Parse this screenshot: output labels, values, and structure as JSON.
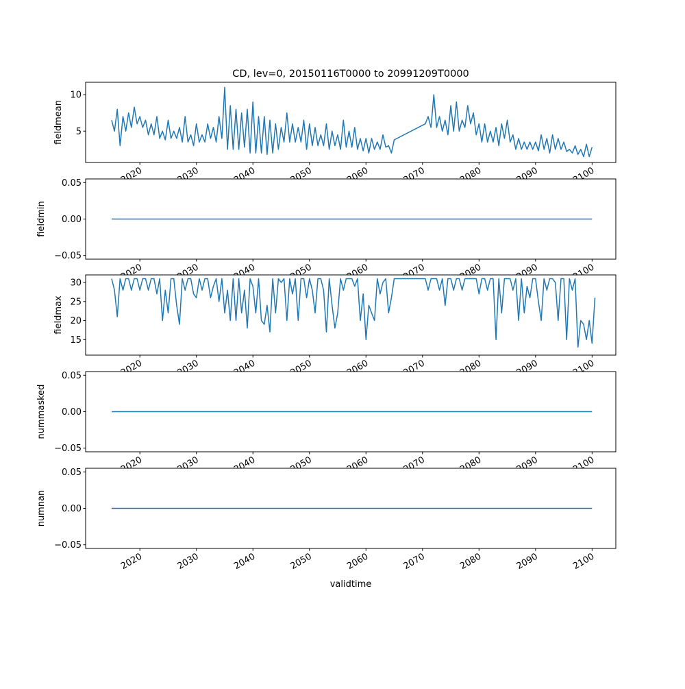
{
  "chart_data": {
    "type": "line",
    "title": "CD, lev=0, 20150116T0000 to 20991209T0000",
    "xlabel": "validtime",
    "xlim": [
      2010.4,
      2104.2
    ],
    "xticks": [
      2020,
      2030,
      2040,
      2050,
      2060,
      2070,
      2080,
      2090,
      2100
    ],
    "xtick_labels": [
      "2020",
      "2030",
      "2040",
      "2050",
      "2060",
      "2070",
      "2080",
      "2090",
      "2100"
    ],
    "line_color": "#1f77b4",
    "subplots": [
      {
        "ylabel": "fieldmean",
        "ylim": [
          0.7,
          11.7
        ],
        "yticks": [
          5,
          10
        ],
        "ytick_labels": [
          "5",
          "10"
        ],
        "segments": [
          {
            "start": 2015,
            "step": 0.5,
            "values": [
              6.5,
              5.0,
              8.0,
              3.0,
              7.0,
              5.0,
              7.5,
              5.5,
              8.3,
              6.0,
              7.0,
              5.5,
              6.5,
              4.5,
              6.0,
              4.5,
              7.0,
              4.0,
              5.0,
              3.8,
              6.5,
              4.0,
              5.0,
              4.0,
              5.5,
              3.5,
              7.0,
              3.5,
              4.5,
              3.0,
              6.0,
              3.5,
              4.5,
              3.5,
              6.0,
              4.0,
              5.5,
              3.5,
              7.0,
              4.0,
              11.0,
              2.5,
              8.5,
              2.5,
              8.0,
              2.5,
              7.5,
              2.8,
              8.0,
              2.0,
              9.0,
              2.0,
              7.0,
              2.0,
              7.0,
              1.8,
              6.5,
              2.0,
              6.0,
              2.5,
              5.5,
              3.5,
              7.5,
              3.5,
              6.0,
              3.5,
              5.5,
              3.5,
              6.5,
              2.5,
              6.0,
              3.0,
              5.5,
              3.0,
              4.5,
              3.0,
              6.0,
              2.5,
              5.0,
              3.0,
              4.5,
              2.5,
              6.5,
              2.8,
              5.0,
              2.8,
              5.5,
              2.5,
              4.0,
              2.3,
              4.0,
              2.0,
              4.0,
              2.5,
              3.5,
              2.5,
              4.5,
              2.8,
              3.0,
              2.0,
              3.8
            ]
          },
          {
            "start": 2070.5,
            "step": 0.5,
            "values": [
              6.0,
              7.0,
              5.5,
              10.0,
              5.5,
              7.0,
              5.0,
              6.5,
              4.5,
              8.5,
              5.0,
              9.0,
              5.0,
              6.5,
              5.5,
              8.5,
              6.0,
              7.5,
              4.5,
              6.0,
              3.5,
              6.0,
              3.5,
              5.0,
              3.5,
              5.5,
              3.0,
              6.0,
              4.0,
              6.5,
              3.5,
              4.5,
              2.5,
              4.0,
              2.5,
              3.5,
              2.5,
              3.5,
              2.5,
              3.5,
              2.3,
              4.5,
              2.5,
              4.0,
              2.0,
              4.5,
              2.5,
              4.0,
              2.5,
              3.5,
              2.2,
              2.5,
              2.0,
              3.0,
              1.8,
              2.5,
              1.5,
              3.2,
              1.5,
              2.8
            ]
          }
        ]
      },
      {
        "ylabel": "fieldmin",
        "ylim": [
          -0.055,
          0.055
        ],
        "yticks": [
          -0.05,
          0,
          0.05
        ],
        "ytick_labels": [
          "−0.05",
          "0.00",
          "0.05"
        ],
        "segments": [
          {
            "start": 2015,
            "step": 85,
            "values": [
              0,
              0
            ]
          }
        ]
      },
      {
        "ylabel": "fieldmax",
        "ylim": [
          10.9,
          32.0
        ],
        "yticks": [
          15,
          20,
          25,
          30
        ],
        "ytick_labels": [
          "15",
          "20",
          "25",
          "30"
        ],
        "segments": [
          {
            "start": 2015,
            "step": 0.5,
            "values": [
              31,
              28,
              21,
              31,
              28,
              31,
              31,
              28,
              31,
              31,
              28,
              31,
              31,
              28,
              31,
              31,
              27,
              31,
              20,
              28,
              22,
              31,
              31,
              24,
              19,
              31,
              28,
              31,
              31,
              27,
              26,
              31,
              28,
              31,
              31,
              26,
              29,
              31,
              25,
              31,
              22,
              28,
              20,
              31,
              20,
              31,
              22,
              28,
              18,
              31,
              29,
              22,
              31,
              20,
              19,
              24,
              17,
              31,
              22,
              31,
              30,
              31,
              20,
              31,
              27,
              31,
              20,
              31,
              31,
              26,
              31,
              28,
              22,
              31,
              31,
              28,
              17,
              31,
              24,
              18,
              22,
              31,
              28,
              31,
              31,
              31,
              29,
              31,
              20,
              27,
              15,
              24,
              22,
              20,
              31,
              27,
              30,
              31,
              22,
              26,
              31
            ]
          },
          {
            "start": 2070.5,
            "step": 0.5,
            "values": [
              31,
              28,
              31,
              31,
              31,
              28,
              31,
              24,
              31,
              31,
              28,
              31,
              31,
              28,
              31,
              31,
              31,
              31,
              31,
              27,
              31,
              31,
              28,
              31,
              31,
              15,
              31,
              22,
              31,
              31,
              31,
              28,
              31,
              20,
              31,
              22,
              29,
              26,
              31,
              31,
              25,
              20,
              31,
              28,
              31,
              31,
              30,
              20,
              31,
              31,
              15,
              31,
              28,
              31,
              13,
              20,
              19,
              15,
              20,
              14,
              26
            ]
          }
        ]
      },
      {
        "ylabel": "nummasked",
        "ylim": [
          -0.055,
          0.055
        ],
        "yticks": [
          -0.05,
          0,
          0.05
        ],
        "ytick_labels": [
          "−0.05",
          "0.00",
          "0.05"
        ],
        "segments": [
          {
            "start": 2015,
            "step": 85,
            "values": [
              0,
              0
            ]
          }
        ]
      },
      {
        "ylabel": "numnan",
        "ylim": [
          -0.055,
          0.055
        ],
        "yticks": [
          -0.05,
          0,
          0.05
        ],
        "ytick_labels": [
          "−0.05",
          "0.00",
          "0.05"
        ],
        "segments": [
          {
            "start": 2015,
            "step": 85,
            "values": [
              0,
              0
            ]
          }
        ]
      }
    ]
  }
}
